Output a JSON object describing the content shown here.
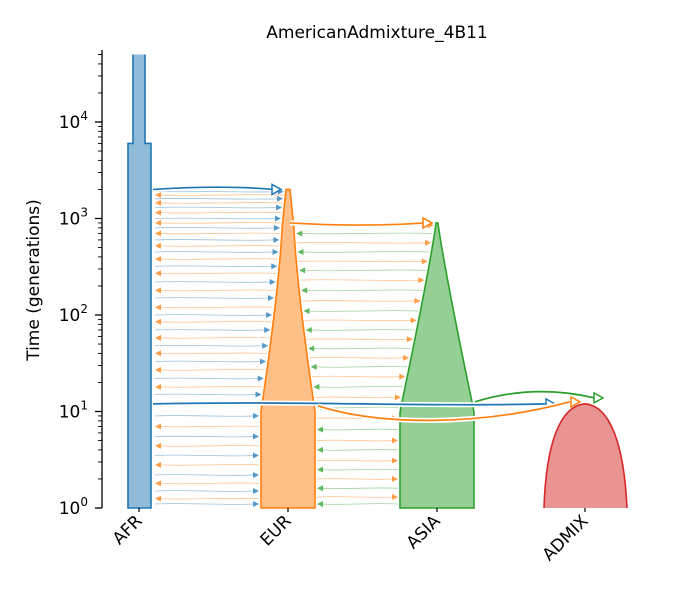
{
  "title": "AmericanAdmixture_4B11",
  "ylabel": "Time (generations)",
  "y_axis": {
    "scale": "log",
    "range": [
      1,
      50000
    ],
    "tick_labels": [
      {
        "value": 1,
        "base": "10",
        "exp": "0"
      },
      {
        "value": 10,
        "base": "10",
        "exp": "1"
      },
      {
        "value": 100,
        "base": "10",
        "exp": "2"
      },
      {
        "value": 1000,
        "base": "10",
        "exp": "3"
      },
      {
        "value": 10000,
        "base": "10",
        "exp": "4"
      }
    ]
  },
  "colors": {
    "AFR": "#1f77b4",
    "EUR": "#ff7f0e",
    "ASIA": "#2ca02c",
    "ADMIX": "#d62728"
  },
  "demes": [
    {
      "name": "AFR",
      "start_time": "infinity",
      "end_time": 0,
      "color": "#1f77b4"
    },
    {
      "name": "EUR",
      "start_time": 2000,
      "end_time": 0,
      "ancestor": "AFR",
      "color": "#ff7f0e"
    },
    {
      "name": "ASIA",
      "start_time": 900,
      "end_time": 0,
      "ancestor": "EUR",
      "color": "#2ca02c"
    },
    {
      "name": "ADMIX",
      "start_time": 12,
      "end_time": 0,
      "ancestors": [
        "AFR",
        "EUR",
        "ASIA"
      ],
      "color": "#d62728"
    }
  ],
  "x_tick_labels": [
    "AFR",
    "EUR",
    "ASIA",
    "ADMIX"
  ],
  "migration_pairs": [
    [
      "AFR",
      "EUR"
    ],
    [
      "AFR",
      "ASIA"
    ],
    [
      "EUR",
      "ASIA"
    ]
  ]
}
